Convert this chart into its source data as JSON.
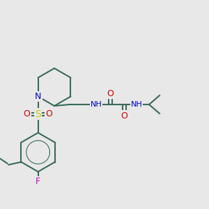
{
  "bg_color": "#e8e8e8",
  "bond_color": "#3a6b5a",
  "bond_width": 1.5,
  "atom_colors": {
    "N": "#0000cc",
    "O": "#cc0000",
    "S": "#cccc00",
    "F": "#cc00cc",
    "H": "#777777",
    "C": "#3a6b5a"
  },
  "font_size": 8
}
